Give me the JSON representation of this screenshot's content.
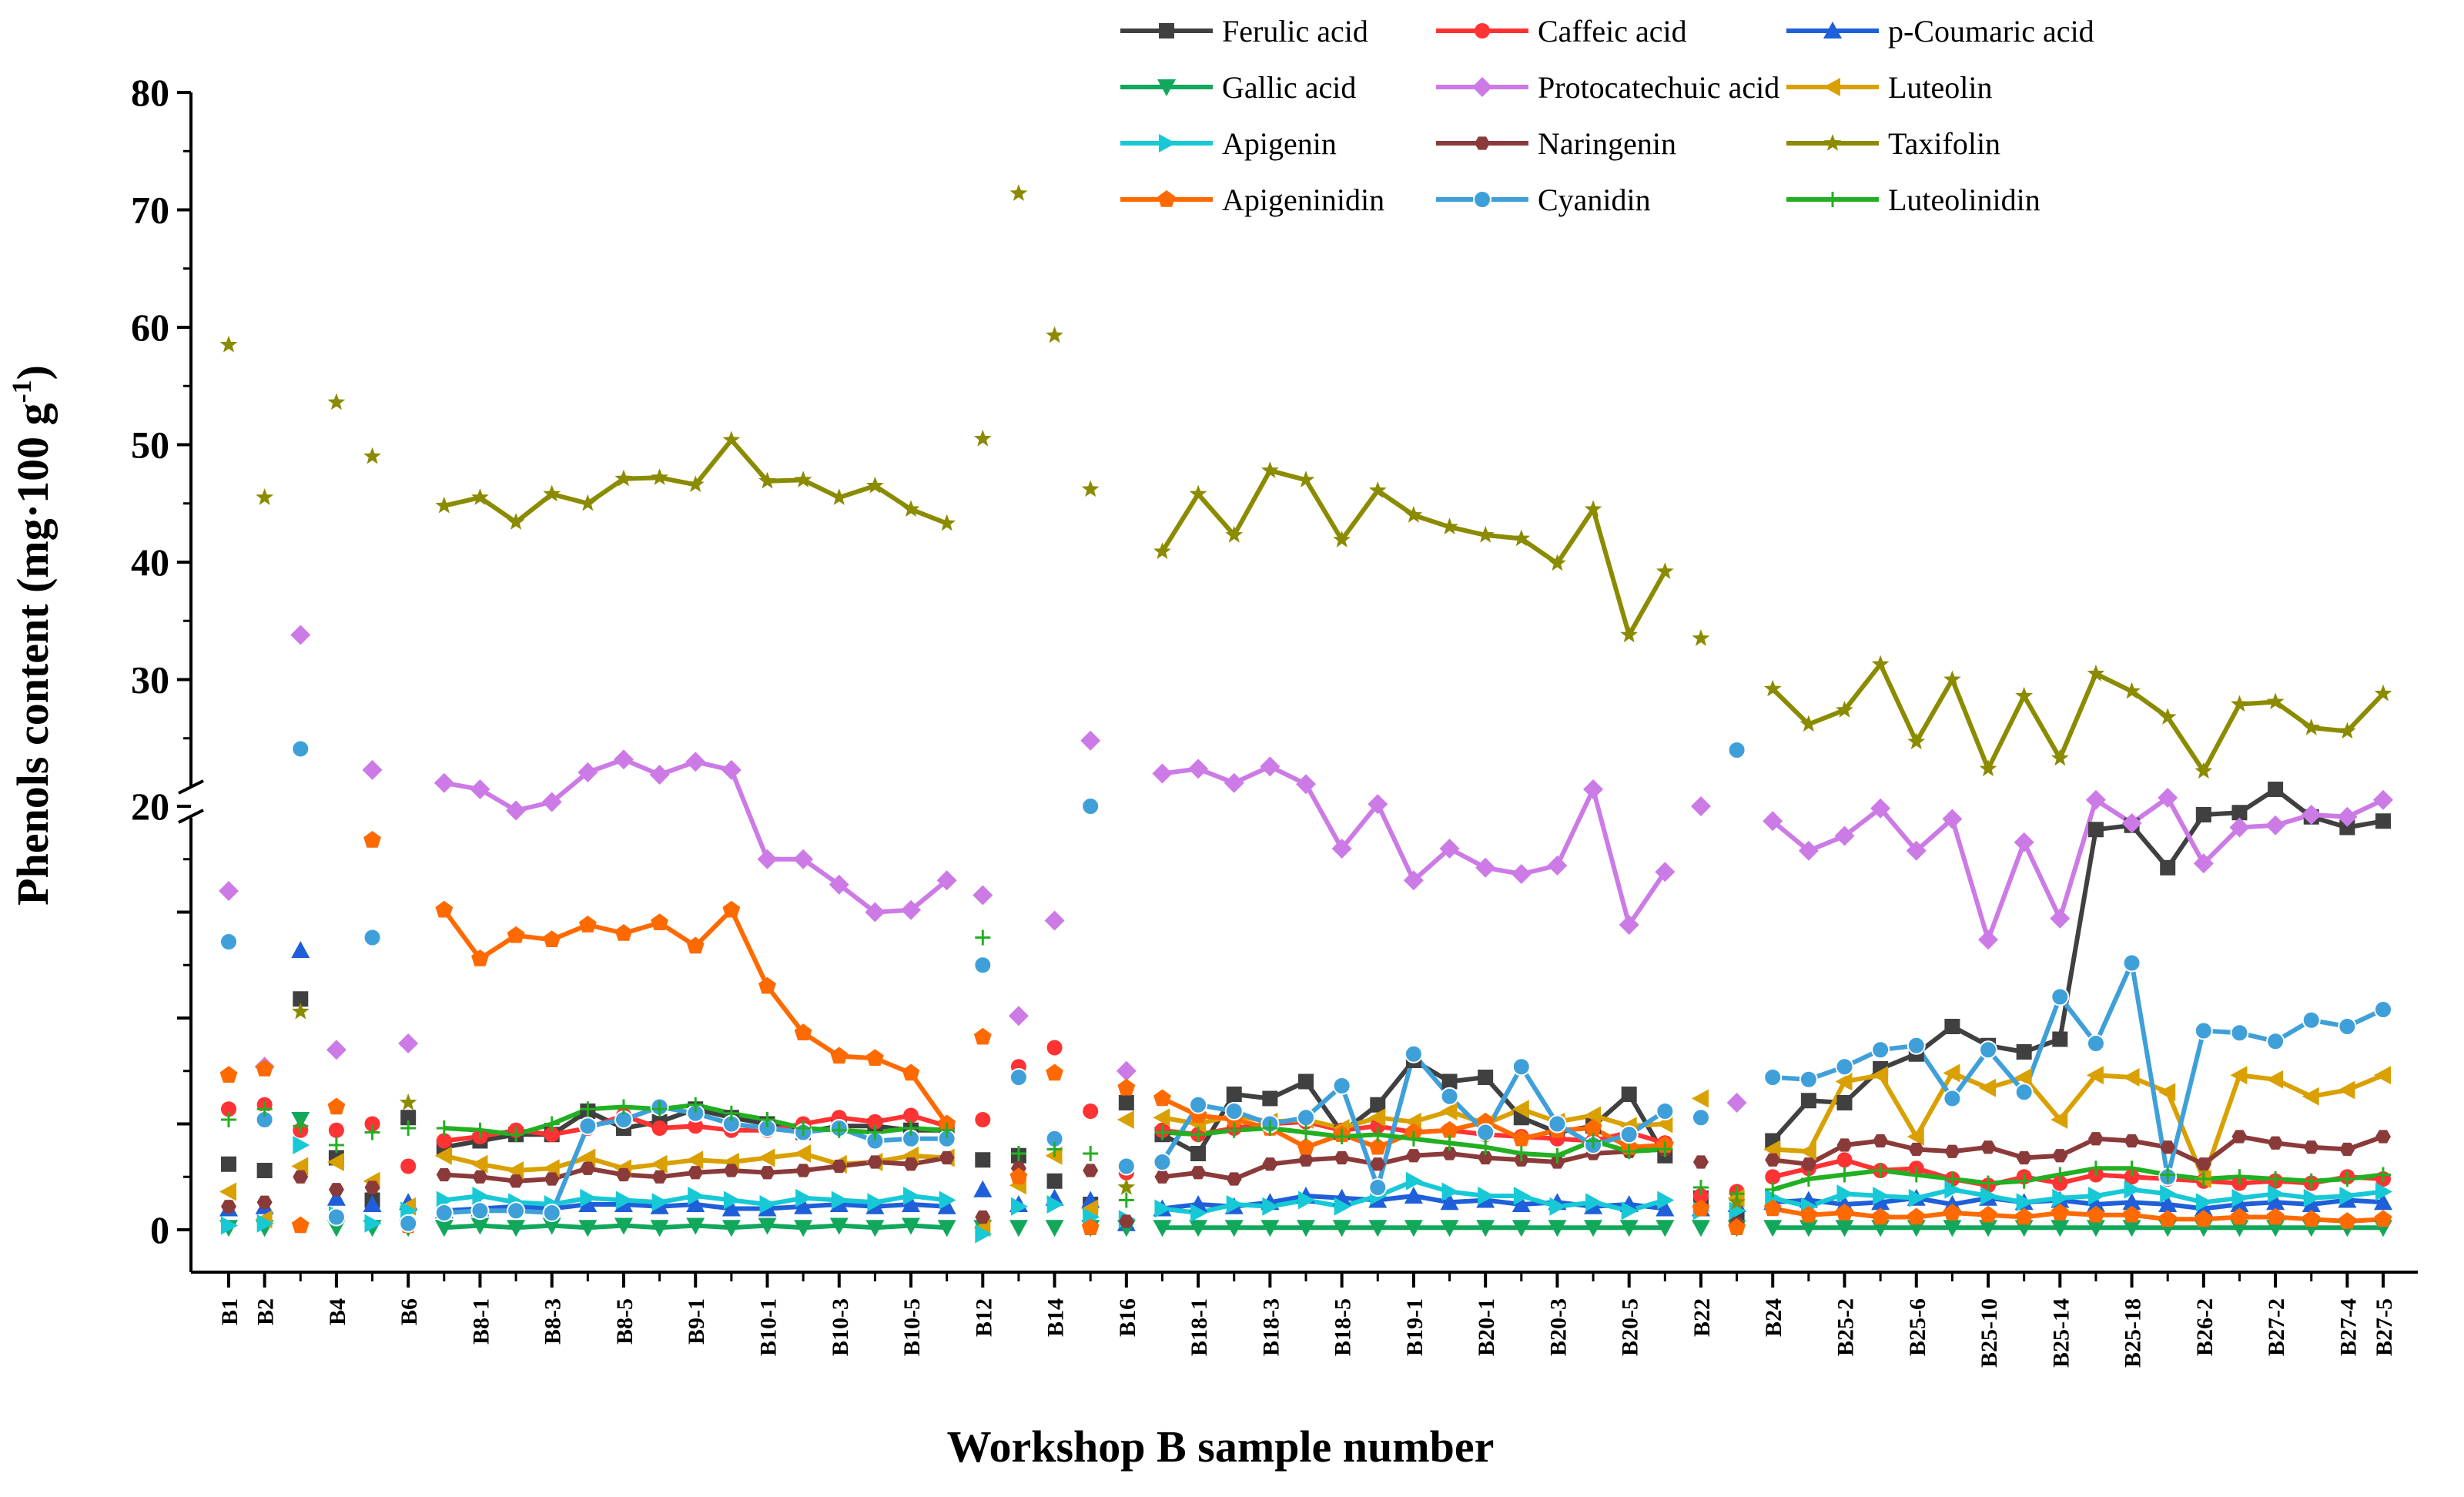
{
  "chart_data": {
    "type": "line",
    "xlabel": "Workshop B sample number",
    "ylabel_main": "Phenols content (mg·100 g",
    "ylabel_sup": "-1",
    "ylabel_close": ")",
    "ylim_upper_segment": [
      20,
      80
    ],
    "ylim_lower_segment": [
      0,
      20
    ],
    "y_ticks_upper": [
      "20",
      "30",
      "40",
      "50",
      "60",
      "70",
      "80"
    ],
    "y_ticks_lower": [
      "0"
    ],
    "legend_position": "top",
    "grid": false,
    "x_ticks": [
      {
        "label": "B1",
        "index": 0
      },
      {
        "label": "B2",
        "index": 1
      },
      {
        "label": "B4",
        "index": 3
      },
      {
        "label": "B6",
        "index": 5
      },
      {
        "label": "B8-1",
        "index": 7
      },
      {
        "label": "B8-3",
        "index": 9
      },
      {
        "label": "B8-5",
        "index": 11
      },
      {
        "label": "B9-1",
        "index": 13
      },
      {
        "label": "B10-1",
        "index": 15
      },
      {
        "label": "B10-3",
        "index": 17
      },
      {
        "label": "B10-5",
        "index": 19
      },
      {
        "label": "B12",
        "index": 21
      },
      {
        "label": "B14",
        "index": 23
      },
      {
        "label": "B16",
        "index": 25
      },
      {
        "label": "B18-1",
        "index": 27
      },
      {
        "label": "B18-3",
        "index": 29
      },
      {
        "label": "B18-5",
        "index": 31
      },
      {
        "label": "B19-1",
        "index": 33
      },
      {
        "label": "B20-1",
        "index": 35
      },
      {
        "label": "B20-3",
        "index": 37
      },
      {
        "label": "B20-5",
        "index": 39
      },
      {
        "label": "B22",
        "index": 41
      },
      {
        "label": "B24",
        "index": 43
      },
      {
        "label": "B25-2",
        "index": 45
      },
      {
        "label": "B25-6",
        "index": 47
      },
      {
        "label": "B25-10",
        "index": 49
      },
      {
        "label": "B25-14",
        "index": 51
      },
      {
        "label": "B25-18",
        "index": 53
      },
      {
        "label": "B26-2",
        "index": 55
      },
      {
        "label": "B27-2",
        "index": 57
      },
      {
        "label": "B27-4",
        "index": 59
      },
      {
        "label": "B27-5",
        "index": 60
      }
    ],
    "line_segments": [
      [
        6,
        20
      ],
      [
        26,
        40
      ],
      [
        43,
        60
      ]
    ],
    "series": [
      {
        "name": "Ferulic acid",
        "color": "#404040",
        "marker": "square",
        "values": [
          3.1,
          2.8,
          10.9,
          3.4,
          1.4,
          5.3,
          3.9,
          4.2,
          4.5,
          4.5,
          5.6,
          4.8,
          5.1,
          5.7,
          5.3,
          5.0,
          4.6,
          4.9,
          4.9,
          4.7,
          4.7,
          3.3,
          3.5,
          2.3,
          1.2,
          6.0,
          4.5,
          3.6,
          6.4,
          6.2,
          7.0,
          4.6,
          5.9,
          8.0,
          7.0,
          7.2,
          5.3,
          4.6,
          4.9,
          6.4,
          3.5,
          1.5,
          0.6,
          4.2,
          6.1,
          6.0,
          7.6,
          8.3,
          9.6,
          8.7,
          8.4,
          9.0,
          18.9,
          19.1,
          17.1,
          19.6,
          19.7,
          20.8,
          19.5,
          19.0,
          19.3
        ]
      },
      {
        "name": "Caffeic acid",
        "color": "#ff3333",
        "marker": "circle",
        "values": [
          5.7,
          5.9,
          4.7,
          4.7,
          5.0,
          3.0,
          4.2,
          4.4,
          4.7,
          4.5,
          4.8,
          5.4,
          4.8,
          4.9,
          4.7,
          4.7,
          5.0,
          5.3,
          5.1,
          5.4,
          4.9,
          5.2,
          7.7,
          8.6,
          5.6,
          2.7,
          4.7,
          4.5,
          4.8,
          5.0,
          5.1,
          4.7,
          4.9,
          4.6,
          4.7,
          4.5,
          4.4,
          4.3,
          4.2,
          4.6,
          4.1,
          1.6,
          1.8,
          2.5,
          2.9,
          3.3,
          2.8,
          2.9,
          2.4,
          2.1,
          2.5,
          2.2,
          2.6,
          2.5,
          2.4,
          2.3,
          2.2,
          2.3,
          2.2,
          2.5,
          2.4
        ]
      },
      {
        "name": "p-Coumaric acid",
        "color": "#1f5fd9",
        "marker": "triangle-up",
        "values": [
          1.0,
          1.1,
          13.2,
          1.5,
          1.2,
          1.3,
          0.9,
          1.0,
          1.1,
          1.0,
          1.2,
          1.2,
          1.1,
          1.2,
          1.0,
          1.0,
          1.1,
          1.2,
          1.1,
          1.2,
          1.1,
          1.9,
          1.2,
          1.5,
          1.4,
          0.3,
          1.0,
          1.2,
          1.1,
          1.3,
          1.6,
          1.5,
          1.4,
          1.6,
          1.3,
          1.4,
          1.2,
          1.3,
          1.1,
          1.2,
          1.0,
          1.0,
          1.2,
          1.3,
          1.4,
          1.2,
          1.3,
          1.5,
          1.2,
          1.5,
          1.3,
          1.4,
          1.2,
          1.3,
          1.2,
          1.0,
          1.2,
          1.3,
          1.2,
          1.4,
          1.3
        ]
      },
      {
        "name": "Gallic acid",
        "color": "#11a85b",
        "marker": "triangle-down",
        "values": [
          0.1,
          0.1,
          5.2,
          0.1,
          0.1,
          0.1,
          0.1,
          0.2,
          0.1,
          0.2,
          0.1,
          0.2,
          0.1,
          0.2,
          0.1,
          0.2,
          0.1,
          0.2,
          0.1,
          0.2,
          0.1,
          0.1,
          0.1,
          0.1,
          0.1,
          0.1,
          0.1,
          0.1,
          0.1,
          0.1,
          0.1,
          0.1,
          0.1,
          0.1,
          0.1,
          0.1,
          0.1,
          0.1,
          0.1,
          0.1,
          0.1,
          0.1,
          0.1,
          0.1,
          0.1,
          0.1,
          0.1,
          0.1,
          0.1,
          0.1,
          0.1,
          0.1,
          0.1,
          0.1,
          0.1,
          0.1,
          0.1,
          0.1,
          0.1,
          0.1,
          0.1
        ]
      },
      {
        "name": "Protocatechuic acid",
        "color": "#cc7ae6",
        "marker": "diamond",
        "values": [
          16.0,
          7.7,
          33.8,
          8.5,
          22.3,
          8.8,
          21.2,
          20.8,
          19.8,
          20.2,
          22.1,
          23.2,
          21.9,
          23.0,
          22.3,
          17.5,
          17.5,
          16.3,
          15.0,
          15.1,
          16.5,
          15.8,
          10.1,
          14.6,
          24.8,
          7.5,
          22.0,
          22.4,
          21.2,
          22.6,
          21.1,
          18.0,
          20.1,
          16.5,
          18.0,
          17.1,
          16.8,
          17.2,
          20.8,
          14.4,
          16.9,
          20.0,
          6.0,
          19.3,
          17.9,
          18.6,
          19.9,
          17.9,
          19.4,
          13.7,
          18.3,
          14.7,
          20.3,
          19.2,
          20.4,
          17.3,
          19.0,
          19.1,
          19.6,
          19.5,
          20.3
        ]
      },
      {
        "name": "Luteolin",
        "color": "#d9a000",
        "marker": "triangle-left",
        "values": [
          1.8,
          0.5,
          3.0,
          3.2,
          2.3,
          1.1,
          3.5,
          3.1,
          2.8,
          2.9,
          3.4,
          2.9,
          3.1,
          3.3,
          3.2,
          3.4,
          3.6,
          3.1,
          3.2,
          3.5,
          3.4,
          0.1,
          2.1,
          3.5,
          1.0,
          5.2,
          5.3,
          5.0,
          5.4,
          5.1,
          5.2,
          4.8,
          5.3,
          5.1,
          5.6,
          5.0,
          5.7,
          5.1,
          5.4,
          4.9,
          5.0,
          6.2,
          1.5,
          3.8,
          3.7,
          7.0,
          7.3,
          4.4,
          7.4,
          6.7,
          7.2,
          5.2,
          7.3,
          7.2,
          6.5,
          2.4,
          7.3,
          7.1,
          6.3,
          6.6,
          7.3
        ]
      },
      {
        "name": "Apigenin",
        "color": "#17c9d6",
        "marker": "triangle-right",
        "values": [
          0.2,
          0.3,
          4.0,
          0.7,
          0.3,
          0.9,
          1.4,
          1.6,
          1.3,
          1.2,
          1.5,
          1.4,
          1.3,
          1.6,
          1.4,
          1.2,
          1.5,
          1.4,
          1.3,
          1.6,
          1.4,
          -0.2,
          1.1,
          1.2,
          0.6,
          0.5,
          1.0,
          0.8,
          1.2,
          1.1,
          1.4,
          1.1,
          1.6,
          2.3,
          1.8,
          1.6,
          1.6,
          1.1,
          1.3,
          0.9,
          1.4,
          0.9,
          0.9,
          1.5,
          1.1,
          1.7,
          1.6,
          1.5,
          1.9,
          1.6,
          1.3,
          1.5,
          1.6,
          1.9,
          1.7,
          1.3,
          1.5,
          1.7,
          1.5,
          1.6,
          1.8
        ]
      },
      {
        "name": "Naringenin",
        "color": "#8b3a3a",
        "marker": "hexagon",
        "values": [
          1.1,
          1.3,
          2.5,
          1.9,
          2.0,
          0.3,
          2.6,
          2.5,
          2.3,
          2.4,
          2.9,
          2.6,
          2.5,
          2.7,
          2.8,
          2.7,
          2.8,
          3.0,
          3.2,
          3.1,
          3.4,
          0.6,
          2.9,
          4.4,
          2.8,
          0.4,
          2.5,
          2.7,
          2.4,
          3.1,
          3.3,
          3.4,
          3.1,
          3.5,
          3.6,
          3.4,
          3.3,
          3.2,
          3.6,
          3.7,
          3.8,
          3.2,
          0.3,
          3.3,
          3.1,
          4.0,
          4.2,
          3.8,
          3.7,
          3.9,
          3.4,
          3.5,
          4.3,
          4.2,
          3.9,
          3.1,
          4.4,
          4.1,
          3.9,
          3.8,
          4.4
        ]
      },
      {
        "name": "Taxifolin",
        "color": "#8b8b00",
        "marker": "star",
        "values": [
          58.5,
          45.5,
          10.3,
          53.6,
          49.0,
          6.0,
          44.8,
          45.5,
          43.4,
          45.8,
          45.0,
          47.1,
          47.2,
          46.6,
          50.4,
          46.9,
          47.0,
          45.5,
          46.5,
          44.5,
          43.3,
          50.5,
          71.4,
          59.3,
          46.2,
          2.0,
          40.9,
          45.8,
          42.3,
          47.8,
          47.0,
          41.9,
          46.1,
          44.0,
          43.0,
          42.3,
          42.0,
          39.9,
          44.5,
          33.8,
          39.2,
          33.5,
          1.3,
          29.2,
          26.2,
          27.4,
          31.3,
          24.7,
          30.0,
          22.4,
          28.6,
          23.3,
          30.5,
          29.0,
          26.8,
          22.2,
          27.9,
          28.1,
          25.9,
          25.6,
          28.8
        ]
      },
      {
        "name": "Apigeninidin",
        "color": "#ff6a00",
        "marker": "pentagon",
        "values": [
          7.3,
          7.6,
          0.2,
          5.8,
          18.4,
          0.2,
          15.1,
          12.8,
          13.9,
          13.7,
          14.4,
          14.0,
          14.5,
          13.4,
          15.1,
          11.5,
          9.3,
          8.2,
          8.1,
          7.4,
          5.0,
          9.1,
          2.5,
          7.4,
          0.1,
          6.7,
          6.2,
          5.4,
          5.2,
          4.8,
          3.9,
          4.5,
          3.9,
          4.6,
          4.7,
          5.1,
          4.3,
          4.7,
          4.8,
          3.9,
          4.0,
          1.0,
          0.1,
          1.0,
          0.7,
          0.8,
          0.6,
          0.6,
          0.8,
          0.7,
          0.6,
          0.8,
          0.7,
          0.7,
          0.5,
          0.5,
          0.6,
          0.6,
          0.5,
          0.4,
          0.5
        ]
      },
      {
        "name": "Cyanidin",
        "color": "#3fa0d9",
        "marker": "circle-ball",
        "values": [
          13.6,
          5.2,
          24.1,
          0.6,
          13.8,
          0.3,
          0.8,
          0.9,
          0.9,
          0.8,
          4.9,
          5.2,
          5.8,
          5.5,
          5.0,
          4.8,
          4.6,
          4.8,
          4.2,
          4.3,
          4.3,
          12.5,
          7.2,
          4.3,
          20.0,
          3.0,
          3.2,
          5.9,
          5.6,
          5.0,
          5.3,
          6.8,
          2.0,
          8.3,
          6.3,
          4.6,
          7.7,
          5.0,
          4.0,
          4.5,
          5.6,
          5.3,
          24.0,
          7.2,
          7.1,
          7.7,
          8.5,
          8.7,
          6.2,
          8.5,
          6.5,
          11.0,
          8.8,
          12.6,
          2.5,
          9.4,
          9.3,
          8.9,
          9.9,
          9.6,
          10.4
        ]
      },
      {
        "name": "Luteolinidin",
        "color": "#22b022",
        "marker": "plus",
        "values": [
          5.2,
          5.7,
          4.9,
          4.0,
          4.6,
          4.8,
          4.8,
          4.7,
          4.5,
          5.0,
          5.7,
          5.8,
          5.7,
          5.9,
          5.5,
          5.2,
          4.8,
          4.7,
          4.6,
          4.8,
          4.7,
          13.8,
          3.6,
          3.8,
          3.6,
          1.4,
          4.6,
          4.5,
          4.7,
          4.8,
          4.6,
          4.4,
          4.5,
          4.3,
          4.1,
          3.9,
          3.6,
          3.5,
          4.2,
          3.7,
          3.8,
          2.0,
          1.7,
          1.9,
          2.4,
          2.6,
          2.8,
          2.6,
          2.4,
          2.2,
          2.3,
          2.6,
          2.9,
          2.9,
          2.6,
          2.4,
          2.5,
          2.4,
          2.3,
          2.4,
          2.6
        ]
      }
    ]
  }
}
